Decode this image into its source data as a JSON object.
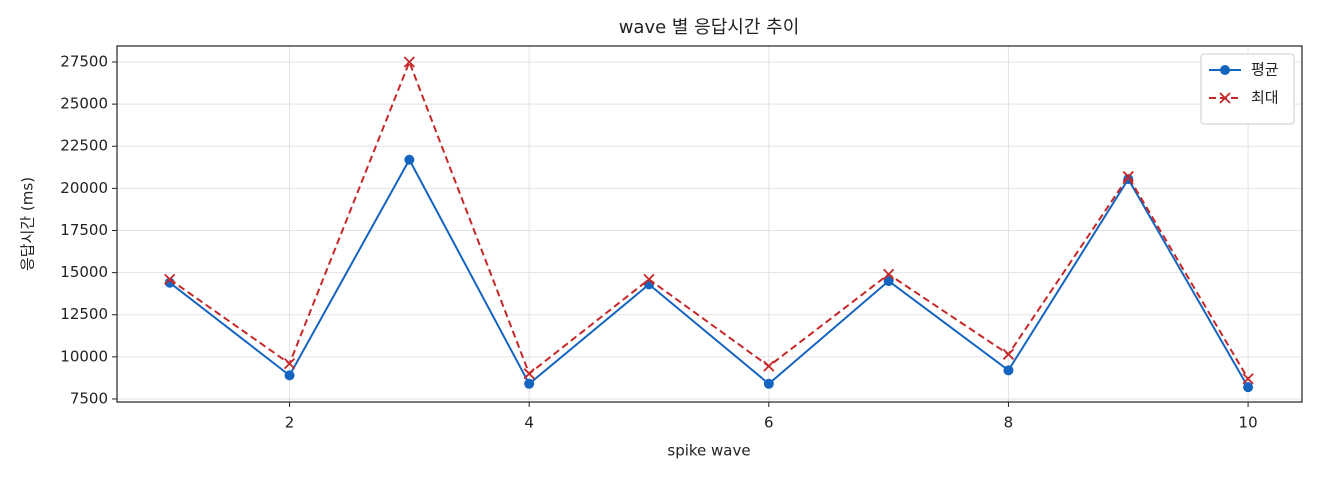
{
  "chart_data": {
    "type": "line",
    "title": "wave 별 응답시간 추이",
    "x_label": "spike wave",
    "y_label": "응답시간 (ms)",
    "x": [
      1,
      2,
      3,
      4,
      5,
      6,
      7,
      8,
      9,
      10
    ],
    "series": [
      {
        "name": "평균",
        "color": "#1565c0",
        "linestyle": "solid",
        "marker": "o",
        "values": [
          14400,
          8900,
          21700,
          8400,
          14300,
          8400,
          14500,
          9200,
          20550,
          8200
        ]
      },
      {
        "name": "최대",
        "color": "#c62828",
        "linestyle": "dashed",
        "marker": "x",
        "values": [
          14600,
          9600,
          27500,
          9000,
          14600,
          9450,
          14900,
          10150,
          20700,
          8700
        ]
      }
    ],
    "xlim": [
      0.56,
      10.45
    ],
    "ylim": [
      7320,
      28450
    ],
    "xticks": [
      2,
      4,
      6,
      8,
      10
    ],
    "yticks": [
      7500,
      10000,
      12500,
      15000,
      17500,
      20000,
      22500,
      25000,
      27500
    ],
    "grid": true,
    "legend": "upper right"
  }
}
